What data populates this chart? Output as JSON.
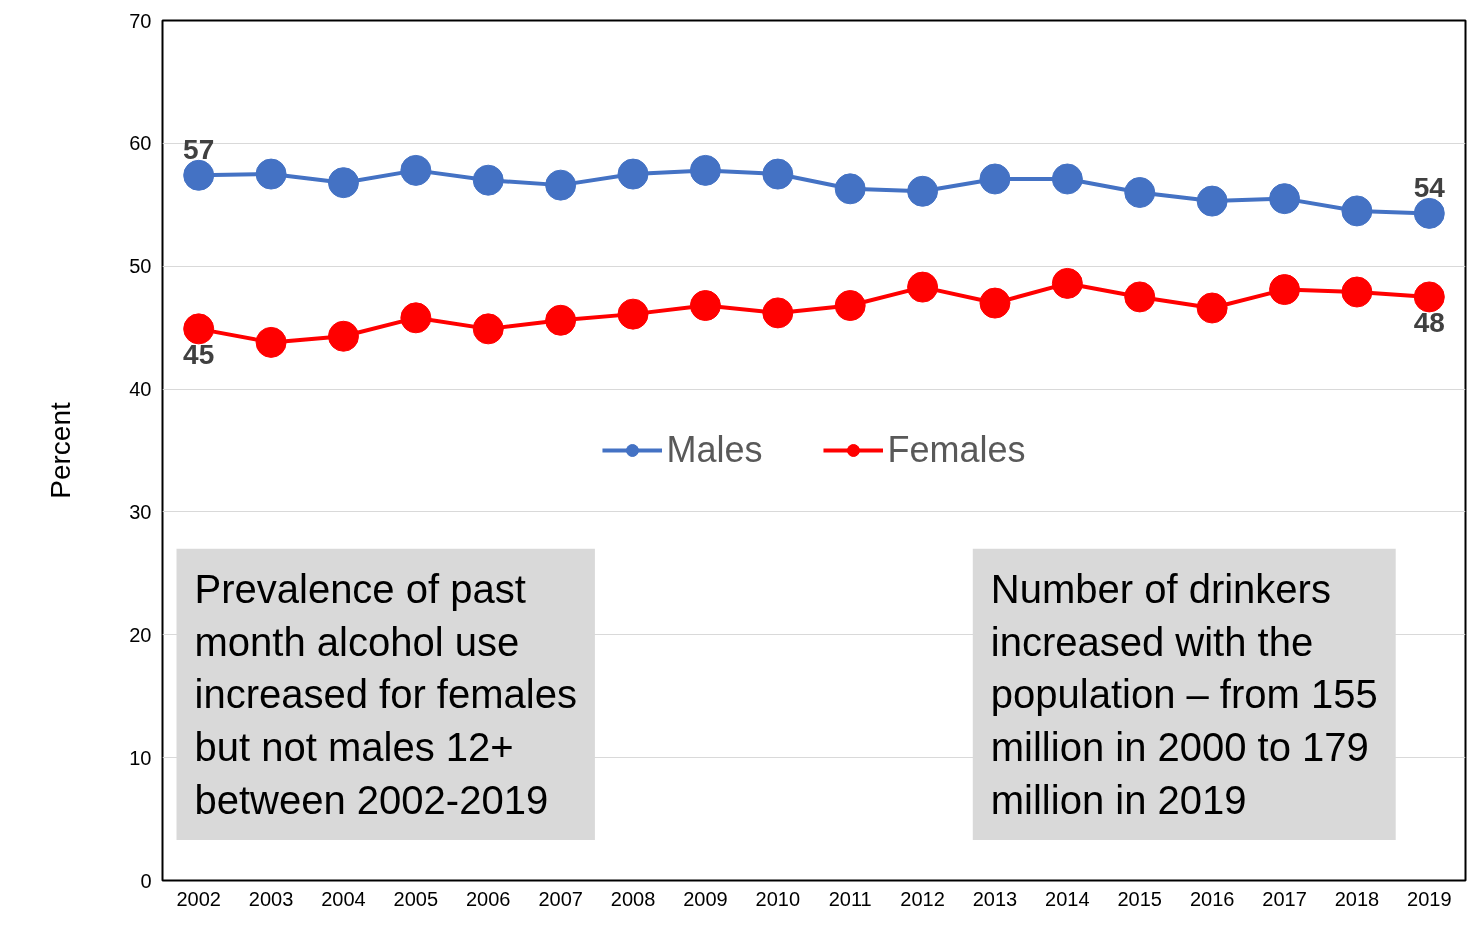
{
  "chart_data": {
    "type": "line",
    "ylabel": "Percent",
    "categories": [
      "2002",
      "2003",
      "2004",
      "2005",
      "2006",
      "2007",
      "2008",
      "2009",
      "2010",
      "2011",
      "2012",
      "2013",
      "2014",
      "2015",
      "2016",
      "2017",
      "2018",
      "2019"
    ],
    "series": [
      {
        "name": "Males",
        "color": "#4472c4",
        "values": [
          57.4,
          57.5,
          56.8,
          57.8,
          57.0,
          56.6,
          57.5,
          57.8,
          57.5,
          56.3,
          56.1,
          57.1,
          57.1,
          56.0,
          55.3,
          55.5,
          54.5,
          54.3
        ],
        "value_labels": [
          "57",
          null,
          null,
          null,
          null,
          null,
          null,
          null,
          null,
          null,
          null,
          null,
          null,
          null,
          null,
          null,
          null,
          "54"
        ]
      },
      {
        "name": "Females",
        "color": "#ff0000",
        "values": [
          44.9,
          43.8,
          44.3,
          45.8,
          44.9,
          45.6,
          46.1,
          46.8,
          46.2,
          46.8,
          48.3,
          47.0,
          48.6,
          47.5,
          46.6,
          48.1,
          47.9,
          47.5
        ],
        "value_labels": [
          "45",
          null,
          null,
          null,
          null,
          null,
          null,
          null,
          null,
          null,
          null,
          null,
          null,
          null,
          null,
          null,
          null,
          "48"
        ]
      }
    ],
    "ylim": [
      0,
      70
    ],
    "yticks": [
      0,
      10,
      20,
      30,
      40,
      50,
      60,
      70
    ],
    "grid": "y",
    "legend": "center",
    "marker": "circle",
    "line_style": "solid",
    "annotations": [
      "Prevalence of past\nmonth alcohol use\nincreased for females\nbut not males 12+\nbetween 2002-2019",
      "Number of drinkers\nincreased with the\npopulation – from 155\nmillion in 2000 to 179\nmillion in 2019"
    ]
  }
}
